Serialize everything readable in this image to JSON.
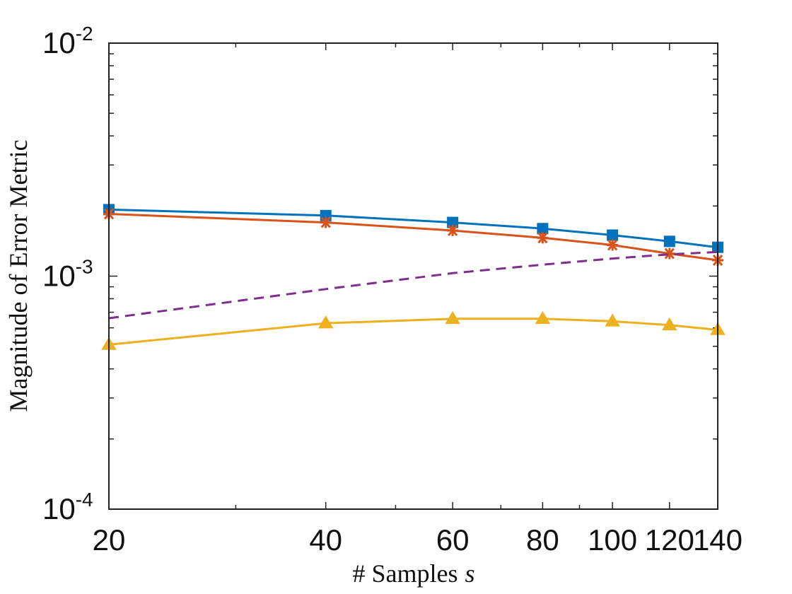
{
  "chart_data": {
    "type": "line",
    "title": "",
    "xscale": "log",
    "yscale": "log",
    "xlabel": "# Samples",
    "xlabel_var": "s",
    "ylabel": "Magnitude of Error Metric",
    "xlim": [
      20,
      140
    ],
    "ylim": [
      0.0001,
      0.01
    ],
    "x": [
      20,
      40,
      60,
      80,
      100,
      120,
      140
    ],
    "xticks": [
      20,
      40,
      60,
      80,
      100,
      120,
      140
    ],
    "xtick_labels": [
      "20",
      "40",
      "60",
      "80",
      "100",
      "120",
      "140"
    ],
    "yticks": [
      {
        "value": 0.0001,
        "base": "10",
        "exp": "-4"
      },
      {
        "value": 0.001,
        "base": "10",
        "exp": "-3"
      },
      {
        "value": 0.01,
        "base": "10",
        "exp": "-2"
      }
    ],
    "grid": false,
    "legend": null,
    "series": [
      {
        "name": "series-1",
        "color": "#0072BD",
        "dash": "solid",
        "marker": "square",
        "values": [
          0.00193,
          0.00182,
          0.0017,
          0.0016,
          0.0015,
          0.00141,
          0.00133
        ]
      },
      {
        "name": "series-2",
        "color": "#D95319",
        "dash": "solid",
        "marker": "asterisk",
        "values": [
          0.00185,
          0.0017,
          0.00157,
          0.00146,
          0.00136,
          0.00125,
          0.00117
        ]
      },
      {
        "name": "series-3",
        "color": "#7E2F8E",
        "dash": "dashed",
        "marker": "none",
        "values": [
          0.00066,
          0.00088,
          0.00103,
          0.00112,
          0.00119,
          0.00124,
          0.00127
        ]
      },
      {
        "name": "series-4",
        "color": "#EDB120",
        "dash": "solid",
        "marker": "triangle",
        "values": [
          0.000508,
          0.000628,
          0.000656,
          0.000656,
          0.00064,
          0.000616,
          0.000588
        ]
      }
    ]
  }
}
